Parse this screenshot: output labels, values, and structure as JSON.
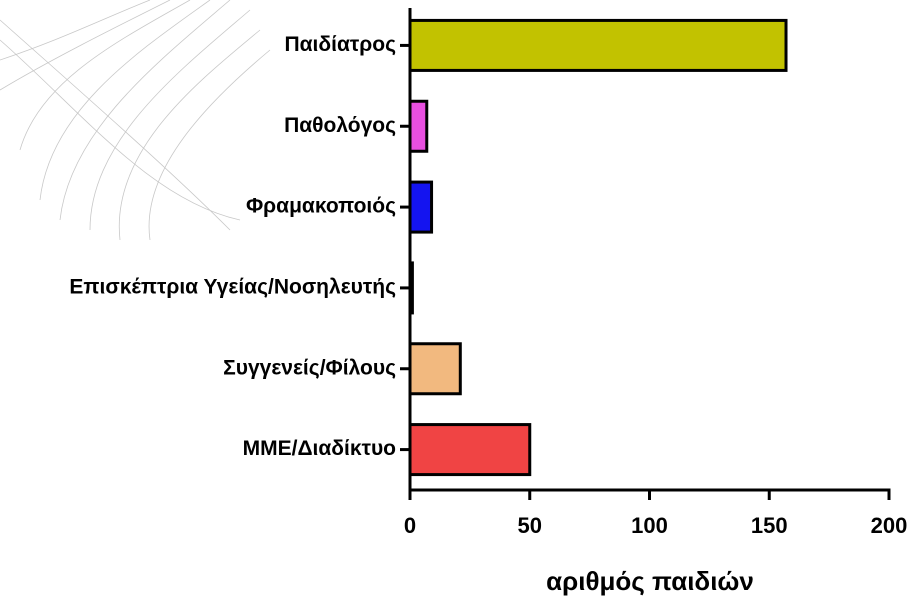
{
  "chart_data": {
    "type": "barh",
    "categories": [
      "Παιδίατρος",
      "Παθολόγος",
      "Φραμακοποιός",
      "Επισκέπτρια Υγείας/Νοσηλευτής",
      "Συγγενείς/Φίλους",
      "ΜΜΕ/Διαδίκτυο"
    ],
    "values": [
      157,
      7,
      9,
      1,
      21,
      50
    ],
    "colors": [
      "#c2c200",
      "#e84fe0",
      "#1414f0",
      "#000000",
      "#f2b97f",
      "#f04444"
    ],
    "xlabel": "αριθμός παιδιών",
    "xlim": [
      0,
      200
    ],
    "xticks": [
      0,
      50,
      100,
      150,
      200
    ]
  }
}
